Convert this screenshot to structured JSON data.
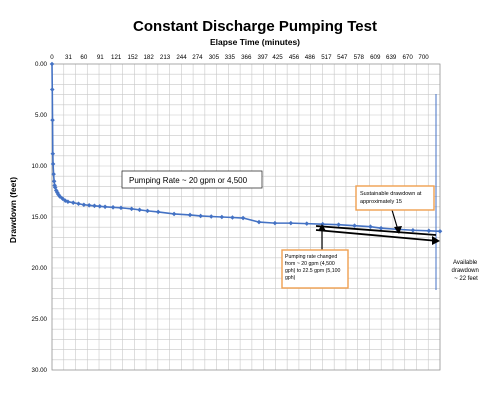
{
  "chart_data": {
    "type": "line",
    "title": "Constant Discharge Pumping Test",
    "xlabel": "Elapse Time (minutes)",
    "ylabel": "Drawdown (feet)",
    "x_axis_position": "top",
    "y_inverted": true,
    "grid": true,
    "xlim": [
      0,
      731
    ],
    "ylim": [
      0,
      30
    ],
    "x_ticks": [
      "0",
      "31",
      "60",
      "91",
      "121",
      "152",
      "182",
      "213",
      "244",
      "274",
      "305",
      "335",
      "366",
      "397",
      "425",
      "456",
      "486",
      "517",
      "547",
      "578",
      "609",
      "639",
      "670",
      "700"
    ],
    "y_ticks": [
      "0.00",
      "5.00",
      "10.00",
      "15.00",
      "20.00",
      "25.00",
      "30.00"
    ],
    "series": [
      {
        "color": "#4472c4",
        "x": [
          0,
          0.5,
          1,
          1.5,
          2,
          3,
          4,
          5,
          6,
          8,
          10,
          12,
          15,
          20,
          25,
          30,
          40,
          50,
          60,
          70,
          80,
          90,
          100,
          115,
          130,
          150,
          165,
          180,
          200,
          230,
          260,
          280,
          300,
          320,
          340,
          360,
          390,
          420,
          450,
          480,
          510,
          540,
          570,
          600,
          620,
          650,
          680,
          710,
          731
        ],
        "y": [
          0,
          2.5,
          5.5,
          8.8,
          9.8,
          10.8,
          11.5,
          11.9,
          12.1,
          12.4,
          12.6,
          12.8,
          13.0,
          13.2,
          13.4,
          13.5,
          13.6,
          13.7,
          13.8,
          13.85,
          13.9,
          13.95,
          14.0,
          14.05,
          14.1,
          14.2,
          14.3,
          14.4,
          14.5,
          14.7,
          14.8,
          14.9,
          14.95,
          15.0,
          15.05,
          15.1,
          15.5,
          15.6,
          15.6,
          15.65,
          15.7,
          15.75,
          15.85,
          15.95,
          16.1,
          16.2,
          16.3,
          16.35,
          16.4
        ]
      }
    ],
    "annotations": {
      "pumping_rate": "Pumping Rate ~ 20 gpm or 4,500",
      "sustainable": "Sustainable drawdown at approximately 15",
      "rate_changed": "Pumping rate changed from ~ 20 gpm (4,500 gph) to 22.5 gpm (5,100 gph)",
      "available": "Available drawdown ~ 22 feet"
    }
  },
  "colors": {
    "series": "#4472c4",
    "grid": "#c8c8c8",
    "callout_border": "#f0a050",
    "vertical_line": "#4472c4"
  }
}
